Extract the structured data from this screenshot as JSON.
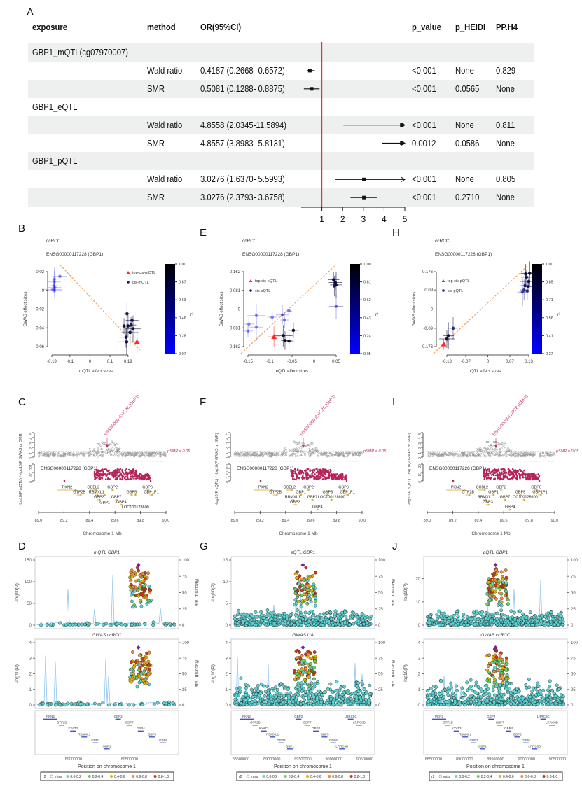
{
  "chart_data": [
    {
      "panel": "A",
      "type": "table",
      "subtype": "forest",
      "columns": [
        "exposure",
        "method",
        "OR(95%CI)",
        "p_value",
        "p_HEIDI",
        "PP.H4"
      ],
      "reference_line": 1,
      "reference_color": "#e8332a",
      "xticks": [
        1,
        2,
        3,
        4,
        5
      ],
      "xlim": [
        0,
        5
      ],
      "groups": [
        {
          "exposure": "GBP1_mQTL(cg07970007)",
          "rows": [
            {
              "method": "Wald ratio",
              "or_ci": "0.4187 (0.2668- 0.6572)",
              "or": 0.4187,
              "lo": 0.2668,
              "hi": 0.6572,
              "p_value": "<0.001",
              "p_heidi": "None",
              "pp_h4": "0.829"
            },
            {
              "method": "SMR",
              "or_ci": "0.5081 (0.1288- 0.8875)",
              "or": 0.5081,
              "lo": 0.1288,
              "hi": 0.8875,
              "p_value": "<0.001",
              "p_heidi": "0.0565",
              "pp_h4": "None"
            }
          ]
        },
        {
          "exposure": "GBP1_eQTL",
          "rows": [
            {
              "method": "Wald ratio",
              "or_ci": "4.8558 (2.0345-11.5894)",
              "or": 4.8558,
              "lo": 2.0345,
              "hi": 11.5894,
              "p_value": "<0.001",
              "p_heidi": "None",
              "pp_h4": "0.811"
            },
            {
              "method": "SMR",
              "or_ci": "4.8557 (3.8983- 5.8131)",
              "or": 4.8557,
              "lo": 3.8983,
              "hi": 5.8131,
              "p_value": "0.0012",
              "p_heidi": "0.0586",
              "pp_h4": "None"
            }
          ]
        },
        {
          "exposure": "GBP1_pQTL",
          "rows": [
            {
              "method": "Wald ratio",
              "or_ci": "3.0276 (1.6370- 5.5993)",
              "or": 3.0276,
              "lo": 1.637,
              "hi": 5.5993,
              "p_value": "<0.001",
              "p_heidi": "None",
              "pp_h4": "0.805"
            },
            {
              "method": "SMR",
              "or_ci": "3.0276 (2.3793- 3.6758)",
              "or": 3.0276,
              "lo": 2.3793,
              "hi": 3.6758,
              "p_value": "<0.001",
              "p_heidi": "0.2710",
              "pp_h4": "None"
            }
          ]
        }
      ]
    },
    {
      "panel": "B",
      "type": "scatter",
      "title": "ccRCC",
      "subtitle": "ENSG00000117228 (GBP1)",
      "xlabel": "mQTL effect sizes",
      "ylabel": "GWAS effect sizes",
      "xticks": [
        -0.19,
        -0.1,
        0,
        0.1,
        0.19
      ],
      "yticks": [
        0.02,
        0,
        -0.02,
        -0.04,
        -0.06
      ],
      "xlim": [
        -0.19,
        0.25
      ],
      "ylim": [
        -0.06,
        0.02
      ],
      "legend": [
        "top-cis-mQTL",
        "cis-mQTL"
      ],
      "legend_position": "top-right",
      "colorbar": {
        "label": "r²",
        "ticks": [
          "1.00",
          "0.87",
          "0.63",
          "0.46",
          "0.28",
          "0.07"
        ]
      },
      "points": [
        {
          "x": -0.185,
          "y": 0.001,
          "r2": 0.1
        },
        {
          "x": -0.18,
          "y": 0.005,
          "r2": 0.1
        },
        {
          "x": -0.178,
          "y": 0.009,
          "r2": 0.12
        },
        {
          "x": -0.176,
          "y": 0.0,
          "r2": 0.1
        },
        {
          "x": -0.175,
          "y": 0.003,
          "r2": 0.15
        },
        {
          "x": -0.15,
          "y": 0.015,
          "r2": 0.2
        },
        {
          "x": -0.177,
          "y": 0.012,
          "r2": 0.1
        },
        {
          "x": 0.17,
          "y": -0.038,
          "r2": 0.9
        },
        {
          "x": 0.185,
          "y": -0.025,
          "r2": 0.85
        },
        {
          "x": 0.19,
          "y": -0.038,
          "r2": 0.9
        },
        {
          "x": 0.2,
          "y": -0.045,
          "r2": 0.95
        },
        {
          "x": 0.21,
          "y": -0.032,
          "r2": 0.8
        },
        {
          "x": 0.215,
          "y": -0.041,
          "r2": 0.9
        },
        {
          "x": 0.18,
          "y": -0.05,
          "r2": 0.95
        },
        {
          "x": 0.183,
          "y": -0.055,
          "r2": 0.9
        },
        {
          "x": 0.205,
          "y": -0.037,
          "r2": 0.85
        },
        {
          "x": 0.235,
          "y": -0.055,
          "r2": 1,
          "top": true
        }
      ]
    },
    {
      "panel": "E",
      "type": "scatter",
      "title": "ccRCC",
      "subtitle": "ENSG00000117228 (GBP1)",
      "xlabel": "eQTL effect sizes",
      "ylabel": "GWAS effect sizes",
      "xticks": [
        -0.15,
        -0.1,
        -0.05,
        0,
        0.05
      ],
      "yticks": [
        0.162,
        0.081,
        0,
        -0.081,
        -0.162
      ],
      "xlim": [
        -0.15,
        0.05
      ],
      "ylim": [
        -0.162,
        0.162
      ],
      "legend": [
        "top cis-eQTL",
        "cis-eQTL"
      ],
      "legend_position": "top-left",
      "colorbar": {
        "label": "r²",
        "ticks": [
          "1.00",
          "0.81",
          "0.62",
          "0.43",
          "0.24",
          "0.05"
        ]
      },
      "points": [
        {
          "x": -0.15,
          "y": -0.095,
          "r2": 0.15
        },
        {
          "x": -0.148,
          "y": -0.065,
          "r2": 0.15
        },
        {
          "x": -0.131,
          "y": -0.078,
          "r2": 0.15
        },
        {
          "x": -0.131,
          "y": -0.028,
          "r2": 0.15
        },
        {
          "x": -0.095,
          "y": -0.035,
          "r2": 0.2
        },
        {
          "x": -0.072,
          "y": -0.025,
          "r2": 0.25
        },
        {
          "x": -0.067,
          "y": -0.047,
          "r2": 0.2
        },
        {
          "x": -0.057,
          "y": -0.008,
          "r2": 0.2
        },
        {
          "x": -0.047,
          "y": -0.092,
          "r2": 0.9
        },
        {
          "x": -0.07,
          "y": -0.115,
          "r2": 0.95
        },
        {
          "x": -0.066,
          "y": -0.136,
          "r2": 0.95
        },
        {
          "x": -0.057,
          "y": -0.138,
          "r2": 0.9
        },
        {
          "x": 0.044,
          "y": 0.127,
          "r2": 0.9
        },
        {
          "x": 0.048,
          "y": 0.115,
          "r2": 0.95
        },
        {
          "x": 0.046,
          "y": 0.1,
          "r2": 0.8
        },
        {
          "x": 0.05,
          "y": 0.105,
          "r2": 0.9
        },
        {
          "x": 0.05,
          "y": 0.012,
          "r2": 0.3
        },
        {
          "x": -0.091,
          "y": -0.12,
          "r2": 1,
          "top": true
        }
      ]
    },
    {
      "panel": "H",
      "type": "scatter",
      "title": "ccRCC",
      "subtitle": "ENSG00000117228 (GBP1)",
      "xlabel": "pQTL effect sizes",
      "ylabel": "GWAS effect sizes",
      "xticks": [
        -0.13,
        -0.07,
        0,
        0.07,
        0.13
      ],
      "yticks": [
        0.176,
        0.09,
        0,
        -0.09,
        -0.176
      ],
      "xlim": [
        -0.15,
        0.13
      ],
      "ylim": [
        -0.176,
        0.176
      ],
      "legend": [
        "top cis-pQTL",
        "cis-pQTL"
      ],
      "legend_position": "top-left",
      "colorbar": {
        "label": "r²",
        "ticks": [
          "1.00",
          "0.85",
          "0.71",
          "0.56",
          "0.41",
          "0.27"
        ]
      },
      "points": [
        {
          "x": -0.13,
          "y": -0.14,
          "r2": 0.9
        },
        {
          "x": -0.125,
          "y": -0.125,
          "r2": 0.85
        },
        {
          "x": -0.11,
          "y": -0.09,
          "r2": 0.7
        },
        {
          "x": 0.12,
          "y": 0.165,
          "r2": 0.9
        },
        {
          "x": 0.123,
          "y": 0.15,
          "r2": 0.85
        },
        {
          "x": 0.133,
          "y": 0.168,
          "r2": 0.95
        },
        {
          "x": 0.13,
          "y": 0.13,
          "r2": 0.9
        },
        {
          "x": 0.118,
          "y": 0.11,
          "r2": 0.8
        },
        {
          "x": 0.128,
          "y": 0.105,
          "r2": 0.85
        },
        {
          "x": 0.11,
          "y": 0.08,
          "r2": 0.5
        },
        {
          "x": 0.115,
          "y": 0.09,
          "r2": 0.6
        },
        {
          "x": 0.125,
          "y": 0.085,
          "r2": 0.7
        },
        {
          "x": -0.14,
          "y": -0.165,
          "r2": 1,
          "top": true
        }
      ]
    },
    {
      "panel": "C",
      "type": "scatter",
      "subtype": "smr-locus",
      "probe_label": "ENSG00000117228 (GBP1)",
      "threshold_label": "pSMR = 0.05",
      "ylabel": "-log10(P mQTL) / -log10(P GWAS or SMR)",
      "top_yticks": [
        "0",
        "1",
        "2",
        "3",
        "4",
        "5"
      ],
      "bottom_yticks": [
        "0",
        "60",
        "121"
      ],
      "xlabel": "Chromosome 1 Mb",
      "xticks": [
        "89.0",
        "89.2",
        "89.4",
        "89.6",
        "89.8",
        "90.0"
      ],
      "xlim": [
        89.0,
        90.0
      ],
      "genes": [
        {
          "name": "PKN2",
          "start": 89.15,
          "end": 89.3,
          "row": 0
        },
        {
          "name": "GTF2B",
          "start": 89.3,
          "end": 89.34,
          "row": 1
        },
        {
          "name": "CCBL2",
          "start": 89.4,
          "end": 89.46,
          "row": 0
        },
        {
          "name": "RBMXL1",
          "start": 89.44,
          "end": 89.47,
          "row": 1
        },
        {
          "name": "GBP3",
          "start": 89.46,
          "end": 89.49,
          "row": 2
        },
        {
          "name": "GBP1",
          "start": 89.51,
          "end": 89.53,
          "row": 1
        },
        {
          "name": "GBP2",
          "start": 89.57,
          "end": 89.59,
          "row": 0
        },
        {
          "name": "GBP7",
          "start": 89.6,
          "end": 89.62,
          "row": 2
        },
        {
          "name": "GBP4",
          "start": 89.64,
          "end": 89.66,
          "row": 3
        },
        {
          "name": "GBP5",
          "start": 89.72,
          "end": 89.74,
          "row": 1
        },
        {
          "name": "LOC100128600",
          "start": 89.75,
          "end": 89.77,
          "row": 1
        },
        {
          "name": "GBP6",
          "start": 89.84,
          "end": 89.87,
          "row": 0
        },
        {
          "name": "GBP1P1",
          "start": 89.87,
          "end": 89.9,
          "row": 1
        }
      ]
    },
    {
      "panel": "F",
      "type": "scatter",
      "subtype": "smr-locus",
      "probe_label": "ENSG00000117228 (GBP1)",
      "threshold_label": "pSMR = 0.05",
      "ylabel": "-log10(P eQTL) / -log10(P GWAS or SMR)",
      "top_yticks": [
        "0",
        "1",
        "2",
        "3",
        "4",
        "5"
      ],
      "bottom_yticks": [
        "0",
        "3",
        "6",
        "10",
        "13"
      ],
      "xlabel": "Chromosome 1 Mb",
      "xticks": [
        "89.0",
        "89.2",
        "89.4",
        "89.6",
        "89.8",
        "90.0"
      ],
      "xlim": [
        89.0,
        90.0
      ],
      "genes": [
        {
          "name": "PKN2",
          "start": 89.15,
          "end": 89.3,
          "row": 0
        },
        {
          "name": "GTF2B",
          "start": 89.3,
          "end": 89.34,
          "row": 1
        },
        {
          "name": "CCBL2",
          "start": 89.4,
          "end": 89.46,
          "row": 0
        },
        {
          "name": "RBMXL1",
          "start": 89.44,
          "end": 89.47,
          "row": 2
        },
        {
          "name": "GBP3",
          "start": 89.46,
          "end": 89.49,
          "row": 3
        },
        {
          "name": "GBP1",
          "start": 89.51,
          "end": 89.53,
          "row": 1
        },
        {
          "name": "GBP2",
          "start": 89.57,
          "end": 89.59,
          "row": 0
        },
        {
          "name": "GBP7",
          "start": 89.6,
          "end": 89.62,
          "row": 2
        },
        {
          "name": "GBP4",
          "start": 89.64,
          "end": 89.66,
          "row": 4
        },
        {
          "name": "GBP5",
          "start": 89.72,
          "end": 89.74,
          "row": 1
        },
        {
          "name": "LOC100128600",
          "start": 89.75,
          "end": 89.77,
          "row": 2
        },
        {
          "name": "GBP6",
          "start": 89.84,
          "end": 89.87,
          "row": 0
        },
        {
          "name": "GBP1P1",
          "start": 89.87,
          "end": 89.9,
          "row": 1
        }
      ]
    },
    {
      "panel": "I",
      "type": "scatter",
      "subtype": "smr-locus",
      "probe_label": "ENSG00000117228 (GBP1)",
      "threshold_label": "pSMR = 0.05",
      "ylabel": "-log10(P pQTL) / -log10(P GWAS or SMR)",
      "top_yticks": [
        "0",
        "1",
        "2",
        "3",
        "4",
        "5"
      ],
      "bottom_yticks": [
        "0",
        "10",
        "20"
      ],
      "xlabel": "Chromosome 1 Mb",
      "xticks": [
        "89.0",
        "89.2",
        "89.4",
        "89.6",
        "89.8",
        "90.0"
      ],
      "xlim": [
        89.0,
        90.0
      ],
      "genes": [
        {
          "name": "PKN2",
          "start": 89.15,
          "end": 89.3,
          "row": 0
        },
        {
          "name": "GTF2B",
          "start": 89.3,
          "end": 89.34,
          "row": 1
        },
        {
          "name": "CCBL2",
          "start": 89.4,
          "end": 89.46,
          "row": 0
        },
        {
          "name": "RBMXL1",
          "start": 89.44,
          "end": 89.47,
          "row": 2
        },
        {
          "name": "GBP3",
          "start": 89.46,
          "end": 89.49,
          "row": 3
        },
        {
          "name": "GBP1",
          "start": 89.51,
          "end": 89.53,
          "row": 1
        },
        {
          "name": "GBP2",
          "start": 89.57,
          "end": 89.59,
          "row": 0
        },
        {
          "name": "GBP7",
          "start": 89.6,
          "end": 89.62,
          "row": 2
        },
        {
          "name": "GBP4",
          "start": 89.64,
          "end": 89.66,
          "row": 4
        },
        {
          "name": "GBP5",
          "start": 89.72,
          "end": 89.74,
          "row": 1
        },
        {
          "name": "LOC100128600",
          "start": 89.75,
          "end": 89.77,
          "row": 2
        },
        {
          "name": "GBP6",
          "start": 89.84,
          "end": 89.87,
          "row": 0
        },
        {
          "name": "GBP1P1",
          "start": 89.87,
          "end": 89.9,
          "row": 1
        }
      ]
    },
    {
      "panel": "D",
      "type": "scatter",
      "subtype": "locuszoom",
      "top": {
        "title": "mQTL GBP1",
        "yticks": [
          0,
          50,
          100,
          150
        ],
        "ymax": 150
      },
      "bottom": {
        "title": "GWAS ccRCC",
        "yticks": [
          0,
          1,
          2,
          3,
          4
        ],
        "ymax": 4
      },
      "ylabel": "-log10(P)",
      "right_label": "Recomb. rate",
      "right_ticks": [
        0,
        25,
        50,
        75,
        100
      ],
      "xlabel": "Position on chromosome 1",
      "xticks": [
        "89000000",
        "89500000"
      ],
      "genes": [
        "PKN2",
        "GTF2B",
        "KYAT3",
        "RBMXL1",
        "GBP3",
        "GBP1",
        "GBP2",
        "GBP7",
        "GBP4",
        "GBP5",
        "GBP6"
      ],
      "legend": [
        "r2",
        "miss",
        "0.0-0.2",
        "0.2-0.4",
        "0.4-0.6",
        "0.6-0.8",
        "0.8-1.0"
      ],
      "legend_colors": [
        "#ffffff",
        "#5fd3d3",
        "#5fd35f",
        "#e0b000",
        "#f08c3c",
        "#c83c14"
      ]
    },
    {
      "panel": "G",
      "type": "scatter",
      "subtype": "locuszoom",
      "top": {
        "title": "eQTL GBP1",
        "yticks": [
          0,
          5,
          10,
          15
        ],
        "ymax": 15
      },
      "bottom": {
        "title": "GWAS UA",
        "yticks": [
          0,
          1,
          2,
          3,
          4
        ],
        "ymax": 4
      },
      "ylabel": "-log10(P)",
      "right_label": "Recomb. rate",
      "right_ticks": [
        0,
        25,
        50,
        75,
        100
      ],
      "xlabel": "Position on chromosome 1",
      "xticks": [
        "88500000",
        "89000000",
        "89500000",
        "90000000",
        "90500000"
      ],
      "genes": [
        "PKN2",
        "GTF2B",
        "KYAT3",
        "RBMXL1",
        "GBP3",
        "GBP1",
        "GBP2",
        "GBP7",
        "GBP4",
        "GBP5",
        "GBP6",
        "LRRC8B",
        "LRRC8C",
        "LRRC8D"
      ],
      "legend": [
        "r2",
        "miss",
        "0.0-0.2",
        "0.2-0.4",
        "0.4-0.6",
        "0.6-0.8",
        "0.8-1.0"
      ],
      "legend_colors": [
        "#ffffff",
        "#5fd3d3",
        "#5fd35f",
        "#e0b000",
        "#f08c3c",
        "#c83c14"
      ]
    },
    {
      "panel": "J",
      "type": "scatter",
      "subtype": "locuszoom",
      "top": {
        "title": "pQTL GBP1",
        "yticks": [
          0,
          10,
          20
        ],
        "ymax": 28
      },
      "bottom": {
        "title": "GWAS ccRCC",
        "yticks": [
          0,
          1,
          2,
          3,
          4
        ],
        "ymax": 4
      },
      "ylabel": "-log10(P)",
      "right_label": "Recomb. rate",
      "right_ticks": [
        0,
        25,
        50,
        75,
        100
      ],
      "xlabel": "Position on chromosome 1",
      "xticks": [
        "88500000",
        "89000000",
        "89500000",
        "90000000",
        "90500000"
      ],
      "genes": [
        "PKN2",
        "GTF2B",
        "KYAT3",
        "RBMXL1",
        "GBP3",
        "GBP1",
        "GBP2",
        "GBP7",
        "GBP4",
        "GBP5",
        "GBP6",
        "LRRC8B",
        "LRRC8C",
        "LRRC8D"
      ],
      "legend": [
        "r2",
        "miss",
        "0.0-0.2",
        "0.2-0.4",
        "0.4-0.6",
        "0.6-0.8",
        "0.8-1.0"
      ],
      "legend_colors": [
        "#ffffff",
        "#5fd3d3",
        "#5fd35f",
        "#e0b000",
        "#f08c3c",
        "#c83c14"
      ]
    }
  ]
}
